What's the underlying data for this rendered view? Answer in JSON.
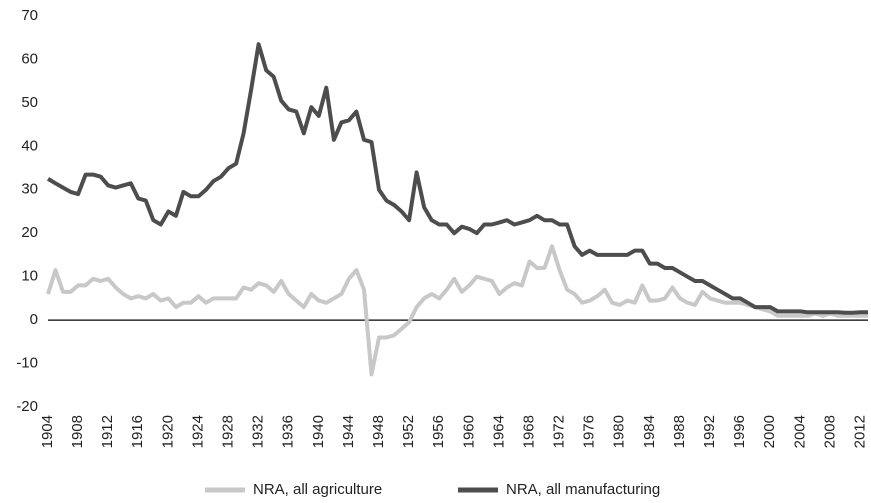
{
  "chart_data": {
    "type": "line",
    "x": [
      1904,
      1905,
      1906,
      1907,
      1908,
      1909,
      1910,
      1911,
      1912,
      1913,
      1914,
      1915,
      1916,
      1917,
      1918,
      1919,
      1920,
      1921,
      1922,
      1923,
      1924,
      1925,
      1926,
      1927,
      1928,
      1929,
      1930,
      1931,
      1932,
      1933,
      1934,
      1935,
      1936,
      1937,
      1938,
      1939,
      1940,
      1941,
      1942,
      1943,
      1944,
      1945,
      1946,
      1947,
      1948,
      1949,
      1950,
      1951,
      1952,
      1953,
      1954,
      1955,
      1956,
      1957,
      1958,
      1959,
      1960,
      1961,
      1962,
      1963,
      1964,
      1965,
      1966,
      1967,
      1968,
      1969,
      1970,
      1971,
      1972,
      1973,
      1974,
      1975,
      1976,
      1977,
      1978,
      1979,
      1980,
      1981,
      1982,
      1983,
      1984,
      1985,
      1986,
      1987,
      1988,
      1989,
      1990,
      1991,
      1992,
      1993,
      1994,
      1995,
      1996,
      1997,
      1998,
      1999,
      2000,
      2001,
      2002,
      2003,
      2004,
      2005,
      2006,
      2007,
      2008,
      2009,
      2010,
      2011,
      2012,
      2013
    ],
    "series": [
      {
        "name": "NRA, all agriculture",
        "color": "#c8c8c8",
        "values": [
          6,
          11.5,
          6.5,
          6.5,
          8,
          8,
          9.5,
          9,
          9.5,
          7.5,
          6,
          5,
          5.5,
          5,
          6,
          4.5,
          5,
          3,
          4,
          4,
          5.5,
          4,
          5,
          5,
          5,
          5,
          7.5,
          7,
          8.5,
          8,
          6.5,
          9,
          6,
          4.5,
          3,
          6,
          4.5,
          4,
          5,
          6,
          9.5,
          11.5,
          7,
          -12.5,
          -4,
          -4,
          -3.5,
          -2,
          -0.5,
          3,
          5,
          6,
          5,
          7,
          9.5,
          6.5,
          8,
          10,
          9.5,
          9,
          6,
          7.5,
          8.5,
          8,
          13.5,
          12,
          12,
          17,
          11.5,
          7,
          6,
          4,
          4.5,
          5.5,
          7,
          4,
          3.5,
          4.5,
          4,
          8,
          4.5,
          4.5,
          5,
          7.5,
          5,
          4,
          3.5,
          6.5,
          5,
          4.5,
          4,
          4,
          4,
          3.5,
          3,
          2.5,
          2,
          1,
          1,
          1,
          1,
          1,
          1.5,
          1,
          1.5,
          1,
          1,
          1,
          1,
          1
        ]
      },
      {
        "name": "NRA, all manufacturing",
        "color": "#4d4d4d",
        "values": [
          32.5,
          31.5,
          30.5,
          29.5,
          29,
          33.5,
          33.5,
          33,
          31,
          30.5,
          31,
          31.5,
          28,
          27.5,
          23,
          22,
          25,
          24,
          29.5,
          28.5,
          28.5,
          30,
          32,
          33,
          35,
          36,
          43,
          53,
          63.5,
          57.5,
          56,
          50.5,
          48.5,
          48,
          43,
          49,
          47,
          53.5,
          41.5,
          45.5,
          46,
          48,
          41.5,
          41,
          30,
          27.5,
          26.5,
          25,
          23,
          34,
          26,
          23,
          22,
          22,
          20,
          21.5,
          21,
          20,
          22,
          22,
          22.5,
          23,
          22,
          22.5,
          23,
          24,
          23,
          23,
          22,
          22,
          17,
          15,
          16,
          15,
          15,
          15,
          15,
          15,
          16,
          16,
          13,
          13,
          12,
          12,
          11,
          10,
          9,
          9,
          8,
          7,
          6,
          5,
          5,
          4,
          3,
          3,
          3,
          2,
          2,
          2,
          2,
          1.8,
          1.8,
          1.8,
          1.8,
          1.8,
          1.7,
          1.7,
          1.8,
          1.8
        ]
      }
    ],
    "xlim": [
      1904,
      2013
    ],
    "xticks": [
      1904,
      1908,
      1912,
      1916,
      1920,
      1924,
      1928,
      1932,
      1936,
      1940,
      1944,
      1948,
      1952,
      1956,
      1960,
      1964,
      1968,
      1972,
      1976,
      1980,
      1984,
      1988,
      1992,
      1996,
      2000,
      2004,
      2008,
      2012
    ],
    "ylim": [
      -20,
      70
    ],
    "yticks": [
      -20,
      -10,
      0,
      10,
      20,
      30,
      40,
      50,
      60,
      70
    ],
    "grid": false,
    "legend": "bottom"
  }
}
